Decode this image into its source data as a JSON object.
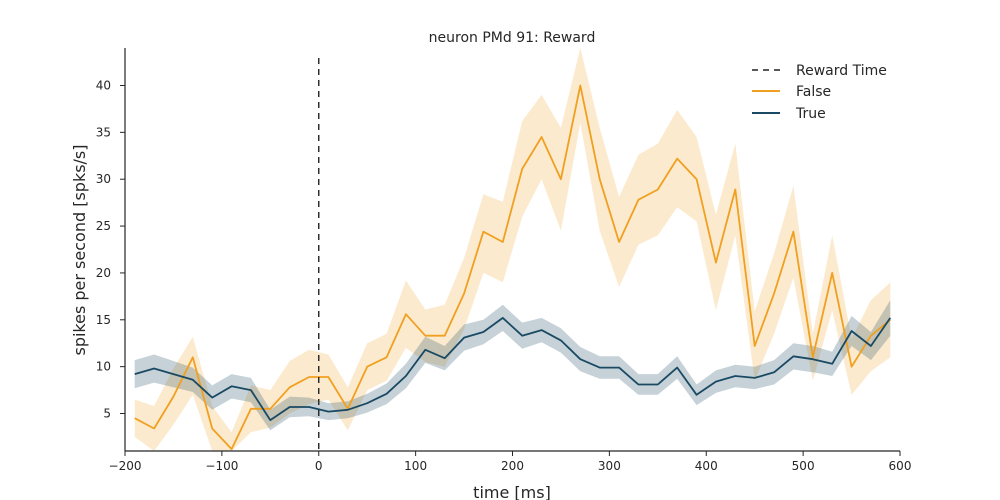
{
  "chart_data": {
    "type": "line",
    "title": "neuron PMd 91: Reward",
    "xlabel": "time [ms]",
    "ylabel": "spikes per second [spks/s]",
    "xlim": [
      -200,
      600
    ],
    "ylim": [
      1,
      44
    ],
    "xticks": [
      -200,
      -100,
      0,
      100,
      200,
      300,
      400,
      500,
      600
    ],
    "xtick_labels": [
      "−200",
      "−100",
      "0",
      "100",
      "200",
      "300",
      "400",
      "500",
      "600"
    ],
    "yticks": [
      5,
      10,
      15,
      20,
      25,
      30,
      35,
      40
    ],
    "ytick_labels": [
      "5",
      "10",
      "15",
      "20",
      "25",
      "30",
      "35",
      "40"
    ],
    "grid": false,
    "legend_position": "top-right",
    "vline": {
      "x": 0,
      "label": "Reward Time",
      "color": "#222222"
    },
    "x": [
      -190,
      -170,
      -150,
      -130,
      -110,
      -90,
      -70,
      -50,
      -30,
      -10,
      10,
      30,
      50,
      70,
      90,
      110,
      130,
      150,
      170,
      190,
      210,
      230,
      250,
      270,
      290,
      310,
      330,
      350,
      370,
      390,
      410,
      430,
      450,
      470,
      490,
      510,
      530,
      550,
      570,
      590
    ],
    "series": [
      {
        "name": "False",
        "color": "#f0a020",
        "values": [
          4.5,
          3.4,
          6.8,
          11.0,
          3.4,
          1.2,
          5.5,
          5.5,
          7.8,
          8.9,
          8.9,
          5.5,
          10.0,
          11.0,
          15.6,
          13.3,
          13.3,
          17.8,
          24.4,
          23.3,
          31.1,
          34.5,
          30.0,
          40.0,
          30.0,
          23.3,
          27.8,
          28.9,
          32.2,
          30.0,
          21.1,
          28.9,
          12.2,
          17.8,
          24.4,
          11.0,
          20.0,
          10.0,
          13.3,
          15.0
        ],
        "lower": [
          2.5,
          1.0,
          3.8,
          7.0,
          1.0,
          0.0,
          3.0,
          3.5,
          5.0,
          6.0,
          6.5,
          3.2,
          7.5,
          8.5,
          12.0,
          10.5,
          10.0,
          14.0,
          20.0,
          19.0,
          26.0,
          30.0,
          24.5,
          36.0,
          24.5,
          18.5,
          23.0,
          24.0,
          27.0,
          25.5,
          16.0,
          24.0,
          8.5,
          13.5,
          19.5,
          8.5,
          16.0,
          7.0,
          9.5,
          11.0
        ],
        "upper": [
          6.5,
          5.8,
          9.8,
          13.2,
          5.8,
          3.0,
          8.0,
          7.5,
          10.6,
          11.8,
          11.3,
          7.8,
          12.5,
          13.5,
          19.2,
          16.1,
          16.6,
          21.6,
          28.4,
          27.6,
          36.2,
          39.0,
          35.5,
          44.0,
          35.5,
          28.1,
          32.6,
          33.8,
          37.4,
          34.5,
          26.2,
          33.8,
          15.9,
          22.1,
          29.3,
          13.5,
          24.0,
          13.0,
          17.1,
          19.0
        ]
      },
      {
        "name": "True",
        "color": "#1a4a63",
        "values": [
          9.2,
          9.8,
          9.2,
          8.6,
          6.7,
          7.9,
          7.5,
          4.3,
          5.7,
          5.7,
          5.2,
          5.4,
          6.1,
          7.1,
          9.0,
          11.8,
          10.9,
          13.1,
          13.7,
          15.2,
          13.3,
          13.9,
          12.8,
          10.8,
          9.9,
          9.9,
          8.1,
          8.1,
          9.9,
          7.0,
          8.4,
          9.0,
          8.8,
          9.4,
          11.1,
          10.8,
          10.3,
          13.8,
          12.2,
          15.2
        ],
        "lower": [
          7.7,
          8.3,
          7.8,
          7.3,
          5.4,
          6.6,
          6.2,
          3.2,
          4.6,
          4.7,
          4.3,
          4.5,
          5.1,
          6.0,
          7.7,
          10.4,
          9.6,
          11.7,
          12.4,
          13.8,
          11.9,
          12.6,
          11.5,
          9.5,
          8.7,
          8.7,
          7.0,
          7.0,
          8.7,
          5.9,
          7.2,
          7.8,
          7.6,
          8.1,
          9.7,
          9.4,
          9.0,
          12.2,
          10.7,
          13.3
        ],
        "upper": [
          10.7,
          11.3,
          10.6,
          9.9,
          8.0,
          9.2,
          8.8,
          5.4,
          6.8,
          6.7,
          6.1,
          6.3,
          7.1,
          8.2,
          10.3,
          13.2,
          12.2,
          14.5,
          15.0,
          16.6,
          14.7,
          15.2,
          14.1,
          12.1,
          11.1,
          11.1,
          9.2,
          9.2,
          11.1,
          8.1,
          9.6,
          10.2,
          10.0,
          10.7,
          12.5,
          12.2,
          11.6,
          15.4,
          13.7,
          17.1
        ]
      }
    ]
  }
}
